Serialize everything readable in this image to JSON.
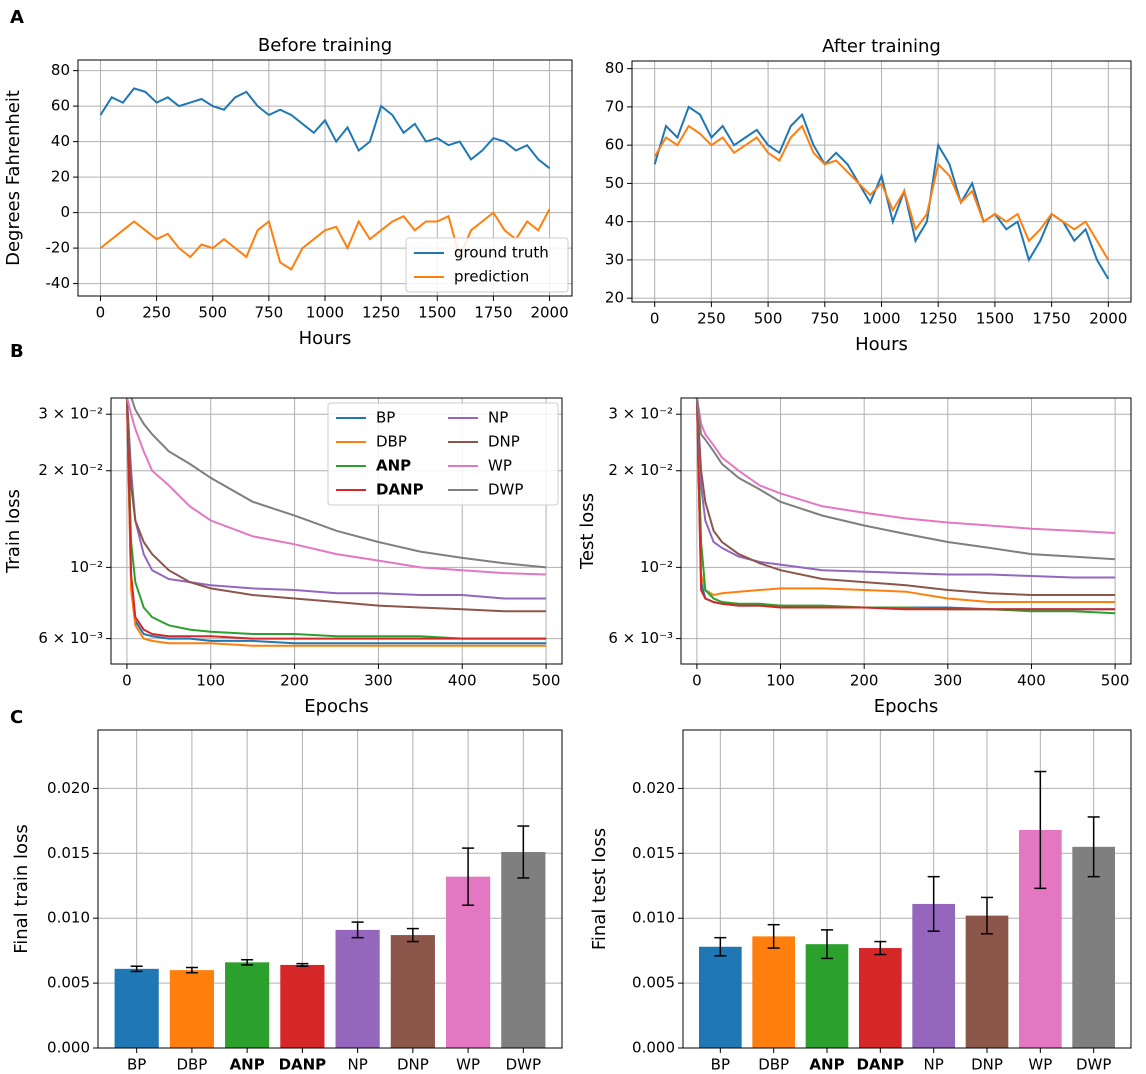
{
  "panels": [
    "A",
    "B",
    "C"
  ],
  "chart_data": [
    {
      "type": "line",
      "title": "Before training",
      "xlabel": "Hours",
      "ylabel": "Degrees Fahrenheit",
      "x": [
        0,
        50,
        100,
        150,
        200,
        250,
        300,
        350,
        400,
        450,
        500,
        550,
        600,
        650,
        700,
        750,
        800,
        850,
        900,
        950,
        1000,
        1050,
        1100,
        1150,
        1200,
        1250,
        1300,
        1350,
        1400,
        1450,
        1500,
        1550,
        1600,
        1650,
        1700,
        1750,
        1800,
        1850,
        1900,
        1950,
        2000
      ],
      "series": [
        {
          "name": "ground truth",
          "color": "#1f77b4",
          "values": [
            55,
            65,
            62,
            70,
            68,
            62,
            65,
            60,
            62,
            64,
            60,
            58,
            65,
            68,
            60,
            55,
            58,
            55,
            50,
            45,
            52,
            40,
            48,
            35,
            40,
            60,
            55,
            45,
            50,
            40,
            42,
            38,
            40,
            30,
            35,
            42,
            40,
            35,
            38,
            30,
            25
          ]
        },
        {
          "name": "prediction",
          "color": "#ff7f0e",
          "values": [
            -20,
            -15,
            -10,
            -5,
            -10,
            -15,
            -12,
            -20,
            -25,
            -18,
            -20,
            -15,
            -20,
            -25,
            -10,
            -5,
            -28,
            -32,
            -20,
            -15,
            -10,
            -8,
            -20,
            -5,
            -15,
            -10,
            -5,
            -2,
            -10,
            -5,
            -5,
            -2,
            -25,
            -10,
            -5,
            0,
            -10,
            -15,
            -5,
            -10,
            2
          ]
        }
      ],
      "xlim": [
        -100,
        2100
      ],
      "xticks": [
        0,
        250,
        500,
        750,
        1000,
        1250,
        1500,
        1750,
        2000
      ],
      "ylim": [
        -47,
        86
      ],
      "yticks": [
        -40,
        -20,
        0,
        20,
        40,
        60,
        80
      ],
      "grid": true,
      "legend": "lower right"
    },
    {
      "type": "line",
      "title": "After training",
      "xlabel": "Hours",
      "x": [
        0,
        50,
        100,
        150,
        200,
        250,
        300,
        350,
        400,
        450,
        500,
        550,
        600,
        650,
        700,
        750,
        800,
        850,
        900,
        950,
        1000,
        1050,
        1100,
        1150,
        1200,
        1250,
        1300,
        1350,
        1400,
        1450,
        1500,
        1550,
        1600,
        1650,
        1700,
        1750,
        1800,
        1850,
        1900,
        1950,
        2000
      ],
      "series": [
        {
          "color": "#1f77b4",
          "values": [
            55,
            65,
            62,
            70,
            68,
            62,
            65,
            60,
            62,
            64,
            60,
            58,
            65,
            68,
            60,
            55,
            58,
            55,
            50,
            45,
            52,
            40,
            48,
            35,
            40,
            60,
            55,
            45,
            50,
            40,
            42,
            38,
            40,
            30,
            35,
            42,
            40,
            35,
            38,
            30,
            25
          ]
        },
        {
          "color": "#ff7f0e",
          "values": [
            57,
            62,
            60,
            65,
            63,
            60,
            62,
            58,
            60,
            62,
            58,
            56,
            62,
            65,
            58,
            55,
            56,
            53,
            50,
            47,
            50,
            43,
            48,
            38,
            42,
            55,
            52,
            45,
            48,
            40,
            42,
            40,
            42,
            35,
            38,
            42,
            40,
            38,
            40,
            35,
            30
          ]
        }
      ],
      "xlim": [
        -100,
        2100
      ],
      "xticks": [
        0,
        250,
        500,
        750,
        1000,
        1250,
        1500,
        1750,
        2000
      ],
      "ylim": [
        19,
        82
      ],
      "yticks": [
        20,
        30,
        40,
        50,
        60,
        70,
        80
      ],
      "grid": true
    },
    {
      "type": "line",
      "xlabel": "Epochs",
      "ylabel": "Train loss",
      "yscale": "log",
      "x": [
        0,
        5,
        10,
        20,
        30,
        50,
        75,
        100,
        150,
        200,
        250,
        300,
        350,
        400,
        450,
        500
      ],
      "series": [
        {
          "name": "BP",
          "color": "#1f77b4",
          "values": [
            0.034,
            0.009,
            0.0068,
            0.0062,
            0.0061,
            0.006,
            0.006,
            0.0059,
            0.0059,
            0.0058,
            0.0058,
            0.0058,
            0.0058,
            0.0058,
            0.0058,
            0.0058
          ]
        },
        {
          "name": "DBP",
          "color": "#ff7f0e",
          "values": [
            0.034,
            0.0085,
            0.0066,
            0.006,
            0.0059,
            0.0058,
            0.0058,
            0.0058,
            0.0057,
            0.0057,
            0.0057,
            0.0057,
            0.0057,
            0.0057,
            0.0057,
            0.0057
          ]
        },
        {
          "name": "ANP",
          "color": "#2ca02c",
          "values": [
            0.034,
            0.012,
            0.009,
            0.0075,
            0.007,
            0.0066,
            0.0064,
            0.0063,
            0.0062,
            0.0062,
            0.0061,
            0.0061,
            0.0061,
            0.006,
            0.006,
            0.006
          ]
        },
        {
          "name": "DANP",
          "color": "#d62728",
          "values": [
            0.034,
            0.0095,
            0.007,
            0.0064,
            0.0062,
            0.0061,
            0.0061,
            0.0061,
            0.006,
            0.006,
            0.006,
            0.006,
            0.006,
            0.006,
            0.006,
            0.006
          ]
        },
        {
          "name": "NP",
          "color": "#9467bd",
          "values": [
            0.034,
            0.02,
            0.014,
            0.011,
            0.0098,
            0.0092,
            0.009,
            0.0088,
            0.0086,
            0.0085,
            0.0083,
            0.0083,
            0.0082,
            0.0082,
            0.008,
            0.008
          ]
        },
        {
          "name": "DNP",
          "color": "#8c564b",
          "values": [
            0.034,
            0.018,
            0.014,
            0.012,
            0.011,
            0.0098,
            0.009,
            0.0086,
            0.0082,
            0.008,
            0.0078,
            0.0076,
            0.0075,
            0.0074,
            0.0073,
            0.0073
          ]
        },
        {
          "name": "WP",
          "color": "#e377c2",
          "values": [
            0.034,
            0.03,
            0.027,
            0.023,
            0.02,
            0.018,
            0.0155,
            0.014,
            0.0125,
            0.0118,
            0.011,
            0.0105,
            0.01,
            0.0098,
            0.0096,
            0.0095
          ]
        },
        {
          "name": "DWP",
          "color": "#7f7f7f",
          "values": [
            0.037,
            0.034,
            0.031,
            0.028,
            0.026,
            0.023,
            0.021,
            0.019,
            0.016,
            0.0145,
            0.013,
            0.012,
            0.0112,
            0.0107,
            0.0103,
            0.01
          ]
        }
      ],
      "xlim": [
        -19,
        519
      ],
      "xticks": [
        0,
        100,
        200,
        300,
        400,
        500
      ],
      "ylim": [
        0.005,
        0.0337
      ],
      "yticks": [
        {
          "value": 0.006,
          "label": "6 × 10⁻³"
        },
        {
          "value": 0.01,
          "label": "10⁻²"
        },
        {
          "value": 0.02,
          "label": "2 × 10⁻²"
        },
        {
          "value": 0.03,
          "label": "3 × 10⁻²"
        }
      ],
      "grid": true,
      "legend": "upper right",
      "legend_columns": 2
    },
    {
      "type": "line",
      "xlabel": "Epochs",
      "ylabel": "Test loss",
      "yscale": "log",
      "x": [
        0,
        5,
        10,
        20,
        30,
        50,
        75,
        100,
        150,
        200,
        250,
        300,
        350,
        400,
        450,
        500
      ],
      "series": [
        {
          "color": "#1f77b4",
          "values": [
            0.034,
            0.009,
            0.008,
            0.0078,
            0.0077,
            0.0076,
            0.0076,
            0.0076,
            0.0075,
            0.0075,
            0.0075,
            0.0075,
            0.0074,
            0.0074,
            0.0074,
            0.0074
          ]
        },
        {
          "color": "#ff7f0e",
          "values": [
            0.034,
            0.0095,
            0.0085,
            0.0082,
            0.0083,
            0.0084,
            0.0085,
            0.0086,
            0.0086,
            0.0085,
            0.0084,
            0.008,
            0.0078,
            0.0078,
            0.0078,
            0.0078
          ]
        },
        {
          "color": "#2ca02c",
          "values": [
            0.034,
            0.012,
            0.0085,
            0.008,
            0.0078,
            0.0077,
            0.0077,
            0.0076,
            0.0076,
            0.0075,
            0.0075,
            0.0074,
            0.0074,
            0.0073,
            0.0073,
            0.0072
          ]
        },
        {
          "color": "#d62728",
          "values": [
            0.034,
            0.0085,
            0.008,
            0.0078,
            0.0077,
            0.0076,
            0.0076,
            0.0075,
            0.0075,
            0.0075,
            0.0074,
            0.0074,
            0.0074,
            0.0074,
            0.0074,
            0.0074
          ]
        },
        {
          "color": "#9467bd",
          "values": [
            0.034,
            0.018,
            0.014,
            0.012,
            0.0115,
            0.0108,
            0.0104,
            0.0102,
            0.0098,
            0.0097,
            0.0096,
            0.0095,
            0.0095,
            0.0094,
            0.0093,
            0.0093
          ]
        },
        {
          "color": "#8c564b",
          "values": [
            0.034,
            0.02,
            0.016,
            0.013,
            0.012,
            0.011,
            0.0103,
            0.0098,
            0.0092,
            0.009,
            0.0088,
            0.0085,
            0.0083,
            0.0082,
            0.0082,
            0.0082
          ]
        },
        {
          "color": "#e377c2",
          "values": [
            0.034,
            0.028,
            0.026,
            0.024,
            0.022,
            0.02,
            0.018,
            0.017,
            0.0155,
            0.0148,
            0.0142,
            0.0138,
            0.0135,
            0.0132,
            0.013,
            0.0128
          ]
        },
        {
          "color": "#7f7f7f",
          "values": [
            0.034,
            0.026,
            0.025,
            0.023,
            0.021,
            0.019,
            0.0175,
            0.016,
            0.0145,
            0.0135,
            0.0127,
            0.012,
            0.0115,
            0.011,
            0.0108,
            0.0106
          ]
        }
      ],
      "xlim": [
        -19,
        519
      ],
      "xticks": [
        0,
        100,
        200,
        300,
        400,
        500
      ],
      "ylim": [
        0.005,
        0.0337
      ],
      "yticks": [
        {
          "value": 0.006,
          "label": "6 × 10⁻³"
        },
        {
          "value": 0.01,
          "label": "10⁻²"
        },
        {
          "value": 0.02,
          "label": "2 × 10⁻²"
        },
        {
          "value": 0.03,
          "label": "3 × 10⁻²"
        }
      ],
      "grid": true
    },
    {
      "type": "bar",
      "ylabel": "Final train loss",
      "categories": [
        "BP",
        "DBP",
        "ANP",
        "DANP",
        "NP",
        "DNP",
        "WP",
        "DWP"
      ],
      "values": [
        0.0061,
        0.006,
        0.0066,
        0.0064,
        0.0091,
        0.0087,
        0.0132,
        0.0151
      ],
      "errors": [
        0.0002,
        0.0002,
        0.0002,
        0.0001,
        0.0006,
        0.0005,
        0.0022,
        0.002
      ],
      "colors": [
        "#1f77b4",
        "#ff7f0e",
        "#2ca02c",
        "#d62728",
        "#9467bd",
        "#8c564b",
        "#e377c2",
        "#7f7f7f"
      ],
      "ylim": [
        0,
        0.0245
      ],
      "yticks": [
        {
          "value": 0,
          "label": "0.000"
        },
        {
          "value": 0.005,
          "label": "0.005"
        },
        {
          "value": 0.01,
          "label": "0.010"
        },
        {
          "value": 0.015,
          "label": "0.015"
        },
        {
          "value": 0.02,
          "label": "0.020"
        }
      ],
      "grid": true
    },
    {
      "type": "bar",
      "ylabel": "Final test loss",
      "categories": [
        "BP",
        "DBP",
        "ANP",
        "DANP",
        "NP",
        "DNP",
        "WP",
        "DWP"
      ],
      "values": [
        0.0078,
        0.0086,
        0.008,
        0.0077,
        0.0111,
        0.0102,
        0.0168,
        0.0155
      ],
      "errors": [
        0.0007,
        0.0009,
        0.0011,
        0.0005,
        0.0021,
        0.0014,
        0.0045,
        0.0023
      ],
      "colors": [
        "#1f77b4",
        "#ff7f0e",
        "#2ca02c",
        "#d62728",
        "#9467bd",
        "#8c564b",
        "#e377c2",
        "#7f7f7f"
      ],
      "ylim": [
        0,
        0.0245
      ],
      "yticks": [
        {
          "value": 0,
          "label": "0.000"
        },
        {
          "value": 0.005,
          "label": "0.005"
        },
        {
          "value": 0.01,
          "label": "0.010"
        },
        {
          "value": 0.015,
          "label": "0.015"
        },
        {
          "value": 0.02,
          "label": "0.020"
        }
      ],
      "grid": true
    }
  ]
}
